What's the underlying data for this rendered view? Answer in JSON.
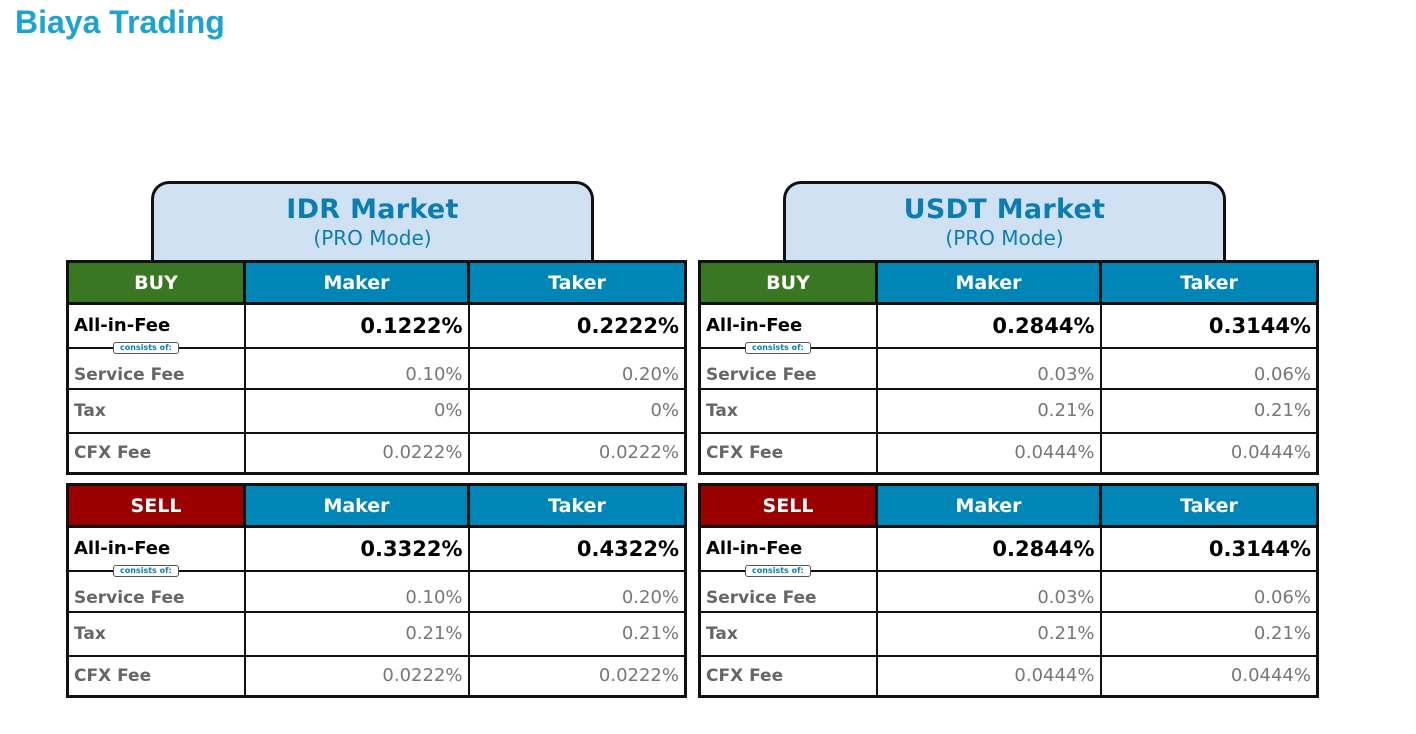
{
  "title": "Biaya Trading",
  "consists_label": "consists of:",
  "columns": {
    "maker": "Maker",
    "taker": "Taker"
  },
  "row_labels": {
    "all_in": "All-in-Fee",
    "service": "Service Fee",
    "tax": "Tax",
    "cfx": "CFX Fee"
  },
  "colors": {
    "title": "#1ba3d1",
    "buy": "#3a7722",
    "sell": "#9a0000",
    "header": "#0085b7",
    "tab": "#cfe1f3"
  },
  "markets": [
    {
      "name": "IDR Market",
      "mode": "(PRO Mode)",
      "tables": [
        {
          "side": "BUY",
          "all_in": [
            "0.1222%",
            "0.2222%"
          ],
          "service": [
            "0.10%",
            "0.20%"
          ],
          "tax": [
            "0%",
            "0%"
          ],
          "cfx": [
            "0.0222%",
            "0.0222%"
          ]
        },
        {
          "side": "SELL",
          "all_in": [
            "0.3322%",
            "0.4322%"
          ],
          "service": [
            "0.10%",
            "0.20%"
          ],
          "tax": [
            "0.21%",
            "0.21%"
          ],
          "cfx": [
            "0.0222%",
            "0.0222%"
          ]
        }
      ]
    },
    {
      "name": "USDT Market",
      "mode": "(PRO Mode)",
      "tables": [
        {
          "side": "BUY",
          "all_in": [
            "0.2844%",
            "0.3144%"
          ],
          "service": [
            "0.03%",
            "0.06%"
          ],
          "tax": [
            "0.21%",
            "0.21%"
          ],
          "cfx": [
            "0.0444%",
            "0.0444%"
          ]
        },
        {
          "side": "SELL",
          "all_in": [
            "0.2844%",
            "0.3144%"
          ],
          "service": [
            "0.03%",
            "0.06%"
          ],
          "tax": [
            "0.21%",
            "0.21%"
          ],
          "cfx": [
            "0.0444%",
            "0.0444%"
          ]
        }
      ]
    }
  ]
}
